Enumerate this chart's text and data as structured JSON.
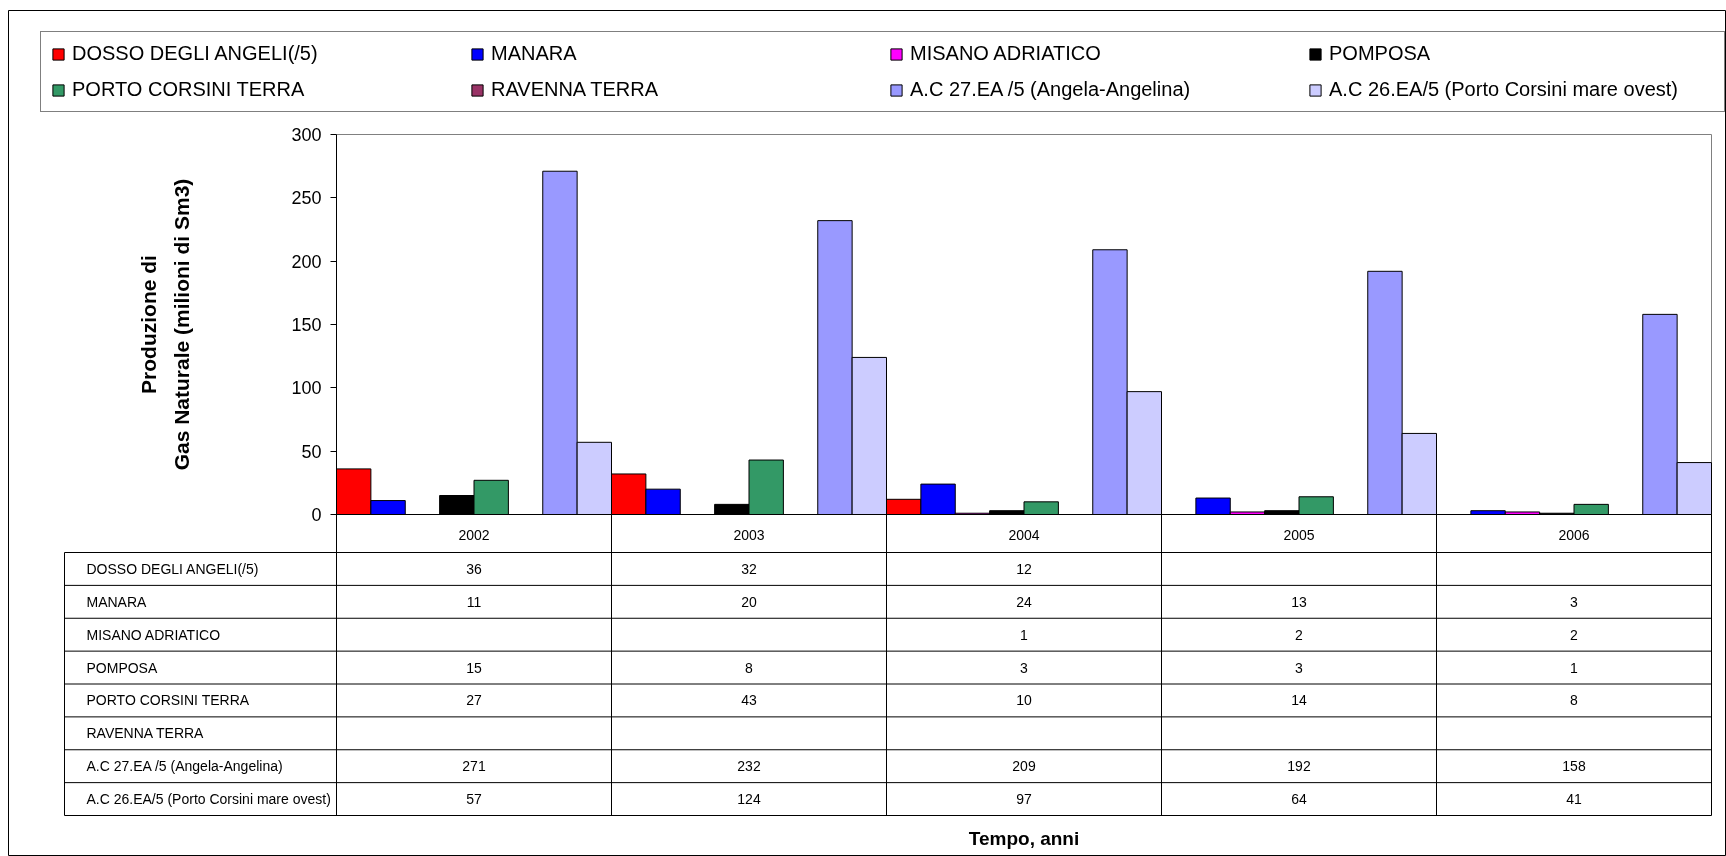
{
  "chart_data": {
    "type": "bar",
    "ylabel": "Produzione di\nGas Naturale (milioni di Sm3)",
    "annotations": [
      "Tempo, anni"
    ],
    "categories": [
      "2002",
      "2003",
      "2004",
      "2005",
      "2006"
    ],
    "series": [
      {
        "name": "DOSSO DEGLI ANGELI(/5)",
        "color": "#ff0000",
        "values": [
          36,
          32,
          12,
          null,
          null
        ]
      },
      {
        "name": "MANARA",
        "color": "#0000ff",
        "values": [
          11,
          20,
          24,
          13,
          3
        ]
      },
      {
        "name": "MISANO ADRIATICO",
        "color": "#ff00ff",
        "values": [
          null,
          null,
          1,
          2,
          2
        ]
      },
      {
        "name": "POMPOSA",
        "color": "#000000",
        "values": [
          15,
          8,
          3,
          3,
          1
        ]
      },
      {
        "name": "PORTO CORSINI TERRA",
        "color": "#339966",
        "values": [
          27,
          43,
          10,
          14,
          8
        ]
      },
      {
        "name": "RAVENNA TERRA",
        "color": "#993366",
        "values": [
          null,
          null,
          null,
          null,
          null
        ]
      },
      {
        "name": "A.C 27.EA /5 (Angela-Angelina)",
        "color": "#9999ff",
        "values": [
          271,
          232,
          209,
          192,
          158
        ]
      },
      {
        "name": "A.C 26.EA/5 (Porto Corsini mare ovest)",
        "color": "#ccccff",
        "values": [
          57,
          124,
          97,
          64,
          41
        ]
      }
    ],
    "ylim": [
      0,
      300
    ],
    "yticks": [
      0,
      50,
      100,
      150,
      200,
      250,
      300
    ],
    "legend": "top",
    "data_labels": true
  }
}
